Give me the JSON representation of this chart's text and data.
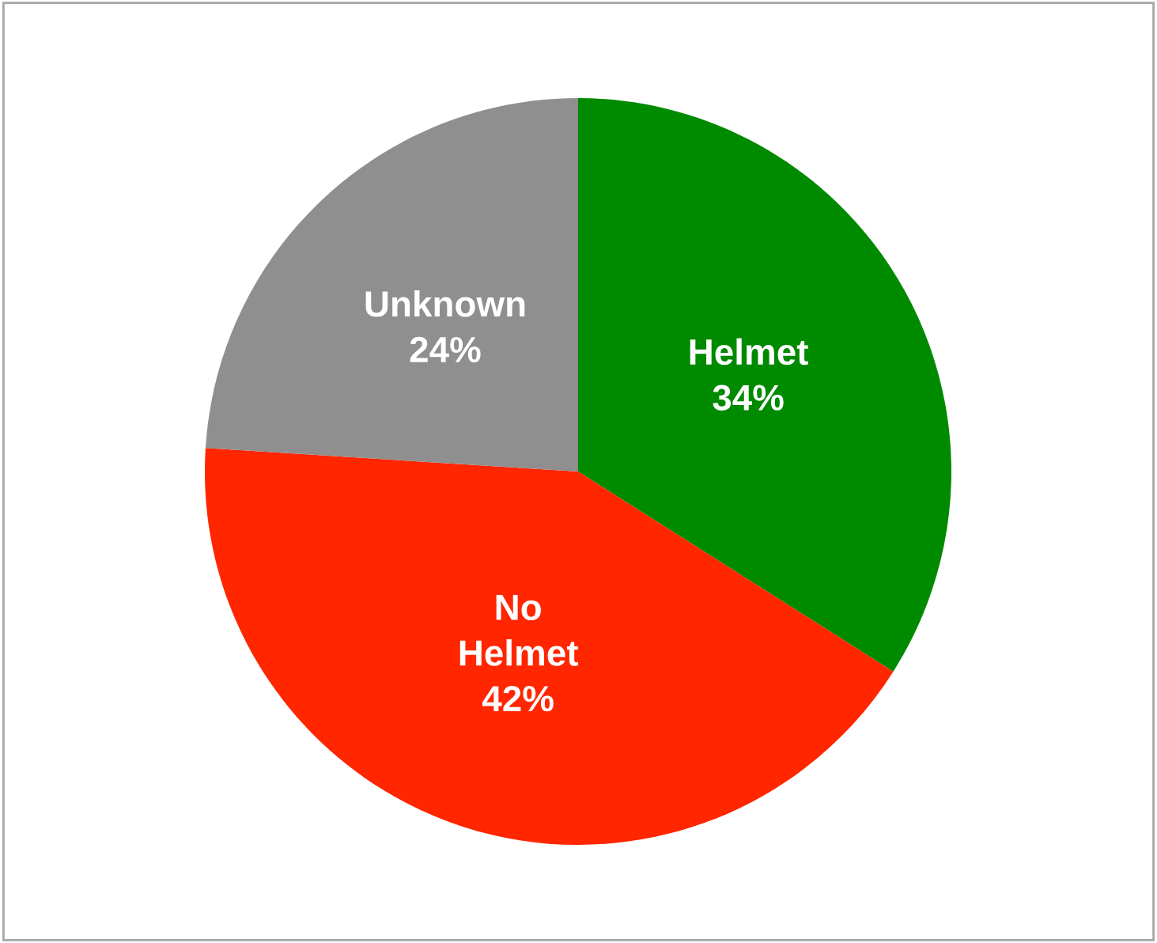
{
  "chart_data": {
    "type": "pie",
    "categories": [
      "Helmet",
      "No Helmet",
      "Unknown"
    ],
    "values": [
      34,
      42,
      24
    ],
    "colors": [
      "#008a00",
      "#ff2600",
      "#8f8f8f"
    ],
    "value_labels": [
      "34%",
      "42%",
      "24%"
    ],
    "legend": false
  }
}
